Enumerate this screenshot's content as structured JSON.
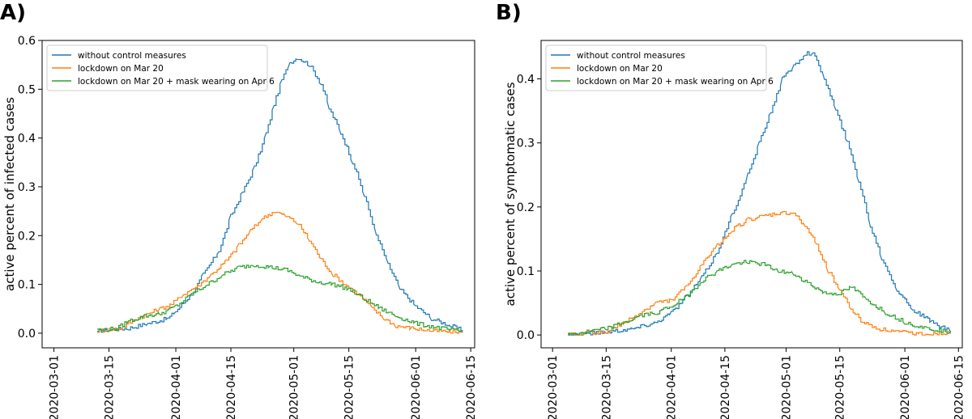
{
  "chart_data": [
    {
      "type": "line",
      "panel_label": "A)",
      "ylabel": "active percent of infected cases",
      "xlabel": "",
      "x_type": "date",
      "xlim": [
        "2020-02-27",
        "2020-06-16"
      ],
      "ylim": [
        -0.03,
        0.6
      ],
      "x_ticks": [
        "2020-03-01",
        "2020-03-15",
        "2020-04-01",
        "2020-04-15",
        "2020-05-01",
        "2020-05-15",
        "2020-06-01",
        "2020-06-15"
      ],
      "y_ticks": [
        "0.0",
        "0.1",
        "0.2",
        "0.3",
        "0.4",
        "0.5",
        "0.6"
      ],
      "legend_position": "top-left",
      "grid": false,
      "series": [
        {
          "name": "without control measures",
          "color": "#1f77b4",
          "x": [
            "2020-03-12",
            "2020-03-20",
            "2020-03-25",
            "2020-03-30",
            "2020-04-01",
            "2020-04-05",
            "2020-04-08",
            "2020-04-12",
            "2020-04-15",
            "2020-04-18",
            "2020-04-21",
            "2020-04-24",
            "2020-04-26",
            "2020-04-28",
            "2020-04-30",
            "2020-05-02",
            "2020-05-05",
            "2020-05-08",
            "2020-05-10",
            "2020-05-13",
            "2020-05-16",
            "2020-05-19",
            "2020-05-22",
            "2020-05-25",
            "2020-05-28",
            "2020-06-01",
            "2020-06-05",
            "2020-06-10",
            "2020-06-13"
          ],
          "y": [
            0.005,
            0.01,
            0.02,
            0.03,
            0.045,
            0.08,
            0.12,
            0.17,
            0.24,
            0.29,
            0.34,
            0.41,
            0.47,
            0.52,
            0.555,
            0.565,
            0.55,
            0.51,
            0.46,
            0.41,
            0.35,
            0.28,
            0.2,
            0.14,
            0.09,
            0.055,
            0.03,
            0.015,
            0.005
          ]
        },
        {
          "name": "lockdown on Mar 20",
          "color": "#ff7f0e",
          "x": [
            "2020-03-12",
            "2020-03-18",
            "2020-03-22",
            "2020-03-25",
            "2020-03-28",
            "2020-03-31",
            "2020-04-03",
            "2020-04-07",
            "2020-04-10",
            "2020-04-14",
            "2020-04-17",
            "2020-04-20",
            "2020-04-23",
            "2020-04-26",
            "2020-04-29",
            "2020-05-02",
            "2020-05-05",
            "2020-05-08",
            "2020-05-11",
            "2020-05-14",
            "2020-05-18",
            "2020-05-21",
            "2020-05-24",
            "2020-05-27",
            "2020-05-31",
            "2020-06-05",
            "2020-06-10",
            "2020-06-13"
          ],
          "y": [
            0.005,
            0.01,
            0.03,
            0.04,
            0.05,
            0.06,
            0.08,
            0.1,
            0.12,
            0.15,
            0.18,
            0.21,
            0.235,
            0.25,
            0.24,
            0.225,
            0.19,
            0.15,
            0.12,
            0.1,
            0.075,
            0.05,
            0.03,
            0.015,
            0.01,
            0.005,
            0.003,
            0.002
          ]
        },
        {
          "name": "lockdown on Mar 20 + mask wearing on Apr 6",
          "color": "#2ca02c",
          "x": [
            "2020-03-12",
            "2020-03-17",
            "2020-03-20",
            "2020-03-24",
            "2020-03-28",
            "2020-04-01",
            "2020-04-05",
            "2020-04-09",
            "2020-04-13",
            "2020-04-17",
            "2020-04-21",
            "2020-04-25",
            "2020-04-29",
            "2020-05-03",
            "2020-05-07",
            "2020-05-11",
            "2020-05-15",
            "2020-05-19",
            "2020-05-23",
            "2020-05-27",
            "2020-06-01",
            "2020-06-06",
            "2020-06-11",
            "2020-06-13"
          ],
          "y": [
            0.005,
            0.01,
            0.025,
            0.035,
            0.04,
            0.055,
            0.08,
            0.1,
            0.12,
            0.135,
            0.14,
            0.135,
            0.13,
            0.115,
            0.105,
            0.1,
            0.09,
            0.07,
            0.05,
            0.035,
            0.02,
            0.012,
            0.005,
            0.003
          ]
        }
      ]
    },
    {
      "type": "line",
      "panel_label": "B)",
      "ylabel": "active percent of symptomatic cases",
      "xlabel": "",
      "x_type": "date",
      "xlim": [
        "2020-02-27",
        "2020-06-16"
      ],
      "ylim": [
        -0.02,
        0.46
      ],
      "x_ticks": [
        "2020-03-01",
        "2020-03-15",
        "2020-04-01",
        "2020-04-15",
        "2020-05-01",
        "2020-05-15",
        "2020-06-01",
        "2020-06-15"
      ],
      "y_ticks": [
        "0.0",
        "0.1",
        "0.2",
        "0.3",
        "0.4"
      ],
      "legend_position": "top-left",
      "grid": false,
      "series": [
        {
          "name": "without control measures",
          "color": "#1f77b4",
          "x": [
            "2020-03-05",
            "2020-03-15",
            "2020-03-22",
            "2020-03-28",
            "2020-04-01",
            "2020-04-05",
            "2020-04-09",
            "2020-04-13",
            "2020-04-17",
            "2020-04-21",
            "2020-04-24",
            "2020-04-27",
            "2020-04-30",
            "2020-05-03",
            "2020-05-06",
            "2020-05-08",
            "2020-05-11",
            "2020-05-14",
            "2020-05-17",
            "2020-05-20",
            "2020-05-23",
            "2020-05-26",
            "2020-05-30",
            "2020-06-03",
            "2020-06-08",
            "2020-06-13"
          ],
          "y": [
            0.0,
            0.005,
            0.01,
            0.02,
            0.035,
            0.06,
            0.09,
            0.13,
            0.19,
            0.25,
            0.3,
            0.35,
            0.4,
            0.42,
            0.44,
            0.44,
            0.4,
            0.35,
            0.3,
            0.24,
            0.17,
            0.12,
            0.07,
            0.04,
            0.02,
            0.005
          ]
        },
        {
          "name": "lockdown on Mar 20",
          "color": "#ff7f0e",
          "x": [
            "2020-03-05",
            "2020-03-15",
            "2020-03-20",
            "2020-03-24",
            "2020-03-28",
            "2020-04-01",
            "2020-04-05",
            "2020-04-09",
            "2020-04-13",
            "2020-04-17",
            "2020-04-21",
            "2020-04-25",
            "2020-04-29",
            "2020-05-03",
            "2020-05-06",
            "2020-05-09",
            "2020-05-12",
            "2020-05-15",
            "2020-05-18",
            "2020-05-21",
            "2020-05-25",
            "2020-05-30",
            "2020-06-05",
            "2020-06-13"
          ],
          "y": [
            0.0,
            0.005,
            0.02,
            0.035,
            0.05,
            0.055,
            0.075,
            0.11,
            0.14,
            0.165,
            0.18,
            0.185,
            0.19,
            0.19,
            0.17,
            0.14,
            0.1,
            0.07,
            0.04,
            0.02,
            0.01,
            0.005,
            0.002,
            0.002
          ]
        },
        {
          "name": "lockdown on Mar 20 + mask wearing on Apr 6",
          "color": "#2ca02c",
          "x": [
            "2020-03-05",
            "2020-03-15",
            "2020-03-20",
            "2020-03-24",
            "2020-03-28",
            "2020-04-01",
            "2020-04-05",
            "2020-04-09",
            "2020-04-13",
            "2020-04-17",
            "2020-04-21",
            "2020-04-25",
            "2020-04-29",
            "2020-05-03",
            "2020-05-07",
            "2020-05-11",
            "2020-05-15",
            "2020-05-18",
            "2020-05-22",
            "2020-05-27",
            "2020-06-01",
            "2020-06-07",
            "2020-06-13"
          ],
          "y": [
            0.0,
            0.01,
            0.02,
            0.03,
            0.035,
            0.045,
            0.06,
            0.085,
            0.1,
            0.11,
            0.115,
            0.11,
            0.1,
            0.095,
            0.08,
            0.065,
            0.065,
            0.075,
            0.055,
            0.035,
            0.02,
            0.01,
            0.005
          ]
        }
      ]
    }
  ]
}
